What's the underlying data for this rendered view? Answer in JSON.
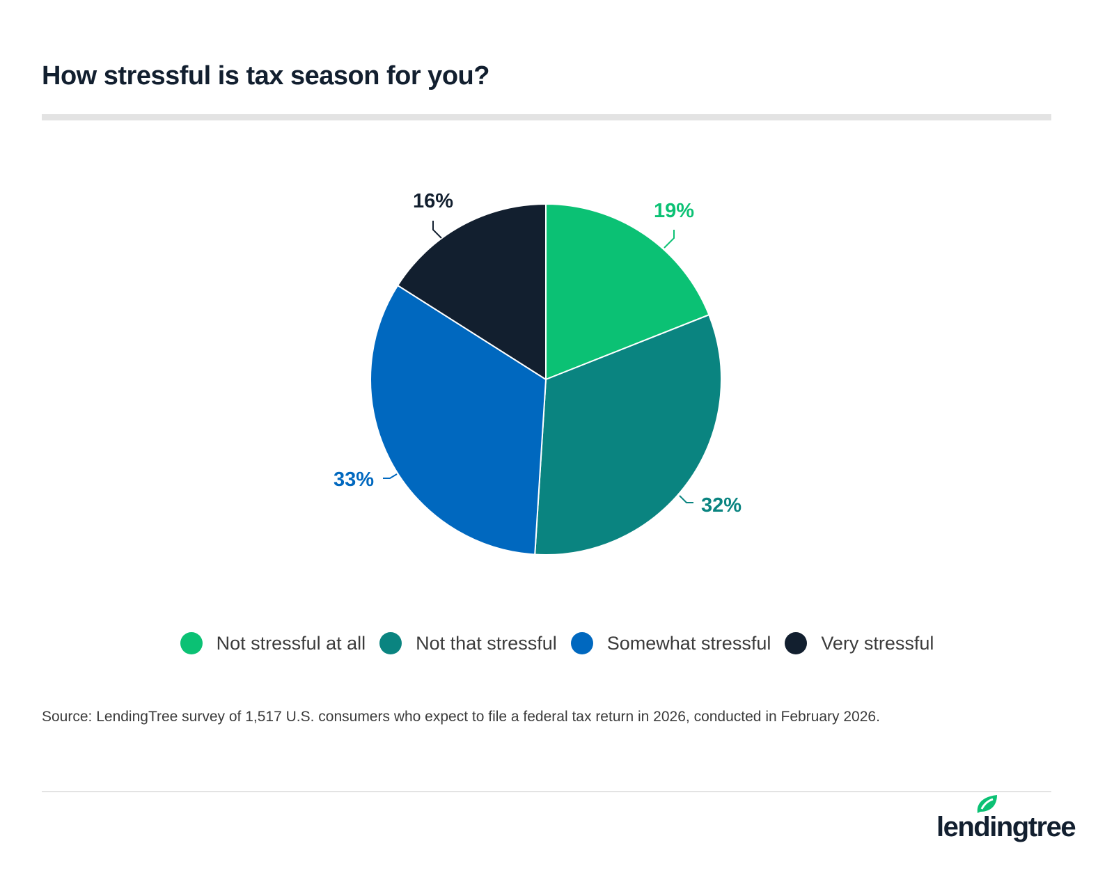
{
  "title": "How stressful is tax season for you?",
  "chart_data": {
    "type": "pie",
    "title": "How stressful is tax season for you?",
    "categories": [
      "Not stressful at all",
      "Not that stressful",
      "Somewhat stressful",
      "Very stressful"
    ],
    "values": [
      19,
      32,
      33,
      16
    ],
    "labels": [
      "19%",
      "32%",
      "33%",
      "16%"
    ],
    "colors": [
      "#0bc174",
      "#0a8480",
      "#0068bf",
      "#121f2f"
    ],
    "legend_position": "bottom",
    "start": "top, clockwise"
  },
  "source": "Source: LendingTree survey of 1,517 U.S. consumers who expect to file a federal tax return in 2026, conducted in February 2026.",
  "logo": {
    "text": "lendingtree",
    "icon": "leaf-icon",
    "color": "#0bc174"
  }
}
